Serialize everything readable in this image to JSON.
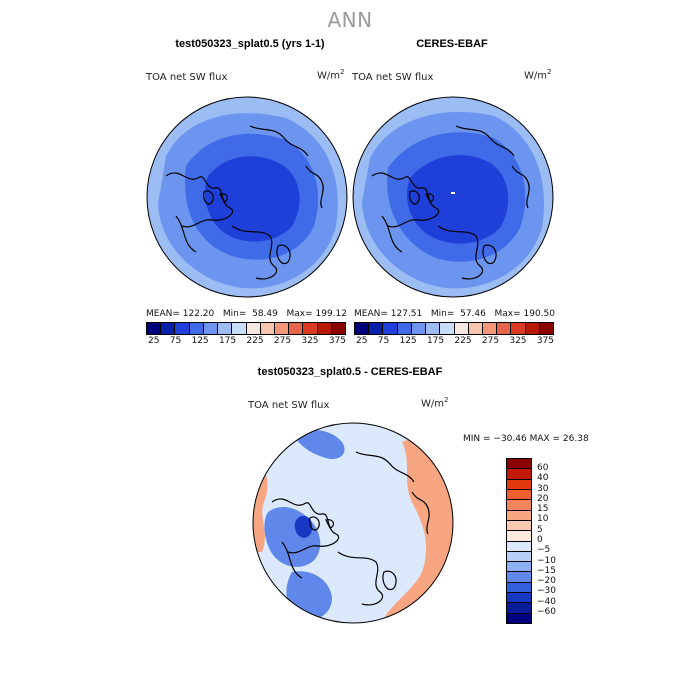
{
  "figure": {
    "title": "ANN"
  },
  "panels": [
    {
      "title": "test050323_splat0.5 (yrs 1-1)",
      "variable": "TOA net SW flux",
      "units_base": "W/m",
      "units_exp": "2",
      "stats": {
        "mean_label": "MEAN=",
        "mean": "122.20",
        "min_label": "Min=",
        "min": "58.49",
        "max_label": "Max=",
        "max": "199.12"
      }
    },
    {
      "title": "CERES-EBAF",
      "variable": "TOA net SW flux",
      "units_base": "W/m",
      "units_exp": "2",
      "stats": {
        "mean_label": "MEAN=",
        "mean": "127.51",
        "min_label": "Min=",
        "min": "57.46",
        "max_label": "Max=",
        "max": "190.50"
      }
    },
    {
      "title": "test050323_splat0.5 - CERES-EBAF",
      "variable": "TOA net SW flux",
      "units_base": "W/m",
      "units_exp": "2",
      "minmax_text": "MIN = −30.46 MAX =  26.38"
    }
  ],
  "colorbar_abs": {
    "ticks": [
      "25",
      "75",
      "125",
      "175",
      "225",
      "275",
      "325",
      "375"
    ],
    "colors": [
      "#00007a",
      "#0a1ea8",
      "#1e40d8",
      "#3f6be8",
      "#6c95f0",
      "#9cbcf4",
      "#c9dcfa",
      "#f4e6e0",
      "#f7c4b0",
      "#f4967a",
      "#e8644a",
      "#d83a22",
      "#b81808",
      "#880000"
    ]
  },
  "colorbar_diff": {
    "ticks": [
      "60",
      "40",
      "30",
      "20",
      "15",
      "10",
      "5",
      "0",
      "−5",
      "−10",
      "−15",
      "−20",
      "−30",
      "−40",
      "−60"
    ],
    "colors": [
      "#8a0000",
      "#c21a06",
      "#e0380f",
      "#f0602e",
      "#f5845a",
      "#f8a682",
      "#fbcab0",
      "#fdeadc",
      "#dce8fb",
      "#b8cff8",
      "#8cb0f2",
      "#5f88ea",
      "#3460e0",
      "#1838c4",
      "#0a1c9a",
      "#000080"
    ]
  },
  "map_colors": {
    "abs_outer": "#9cbcf4",
    "abs_mid": "#6c95f0",
    "abs_inner": "#3f6be8",
    "abs_core": "#1e40d8",
    "diff_base": "#dce8fb",
    "diff_pos": "#f8a682",
    "diff_neg": "#5f88ea",
    "diff_neg_strong": "#1838c4",
    "land_line": "#000000"
  }
}
